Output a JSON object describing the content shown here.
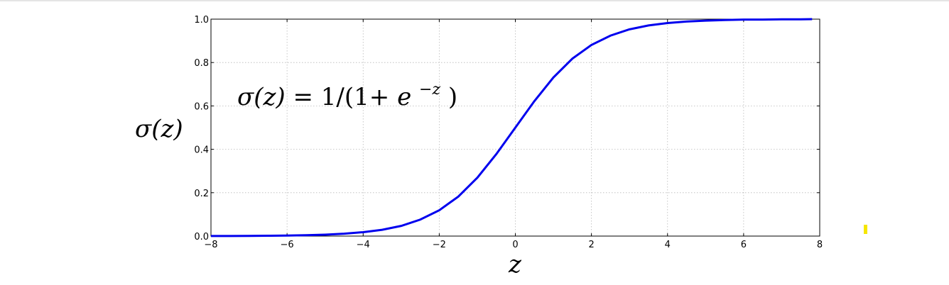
{
  "chart_data": {
    "type": "line",
    "title": "",
    "xlabel": "z",
    "ylabel": "σ(z)",
    "annotation": {
      "lhs": "σ(z)",
      "eq": "=",
      "rhs_prefix": "1/(1+",
      "base": "e",
      "exponent": "−z",
      "rhs_suffix": ")"
    },
    "xlim": [
      -8,
      8
    ],
    "ylim": [
      0,
      1
    ],
    "xticks": [
      -8,
      -6,
      -4,
      -2,
      0,
      2,
      4,
      6,
      8
    ],
    "xtick_labels": [
      "−8",
      "−6",
      "−4",
      "−2",
      "0",
      "2",
      "4",
      "6",
      "8"
    ],
    "yticks": [
      0,
      0.2,
      0.4,
      0.6,
      0.8,
      1.0
    ],
    "ytick_labels": [
      "0.0",
      "0.2",
      "0.4",
      "0.6",
      "0.8",
      "1.0"
    ],
    "grid": true,
    "series": [
      {
        "color": "#0000ee",
        "x": [
          -8,
          -7.5,
          -7,
          -6.5,
          -6,
          -5.5,
          -5,
          -4.5,
          -4,
          -3.5,
          -3,
          -2.5,
          -2,
          -1.5,
          -1,
          -0.5,
          0,
          0.5,
          1,
          1.5,
          2,
          2.5,
          3,
          3.5,
          4,
          4.5,
          5,
          5.5,
          6,
          6.5,
          7,
          7.5,
          7.8
        ],
        "y": [
          0.0003,
          0.0006,
          0.0009,
          0.0015,
          0.0025,
          0.0041,
          0.0067,
          0.011,
          0.018,
          0.029,
          0.047,
          0.076,
          0.119,
          0.182,
          0.269,
          0.378,
          0.5,
          0.622,
          0.731,
          0.818,
          0.881,
          0.924,
          0.953,
          0.971,
          0.982,
          0.989,
          0.993,
          0.996,
          0.998,
          0.998,
          0.999,
          0.999,
          1.0
        ]
      }
    ]
  },
  "marker": {
    "color": "#f5e600"
  }
}
